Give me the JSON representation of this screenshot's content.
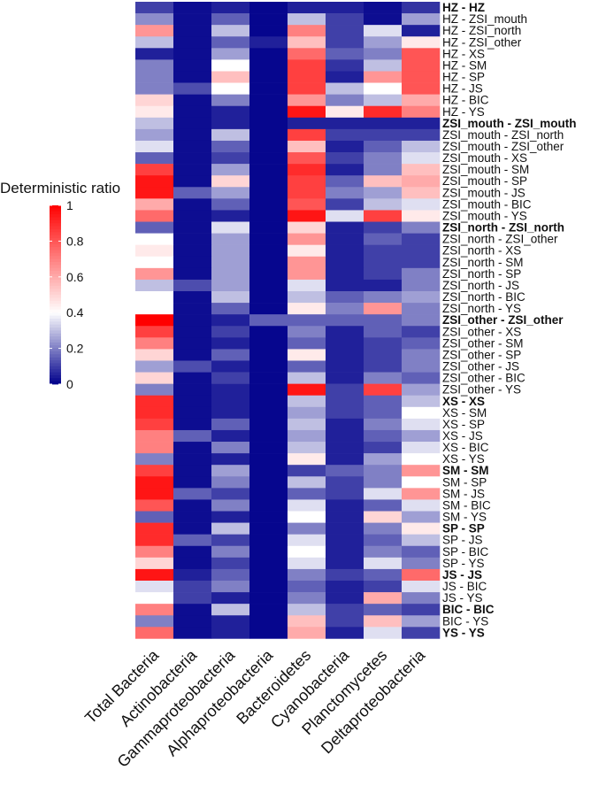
{
  "chart_data": {
    "type": "heatmap",
    "title": "",
    "columns": [
      "Total Bacteria",
      "Actinobacteria",
      "Gammaproteobacteria",
      "Alphaproteobacteria",
      "Bacteroidetes",
      "Cyanobacteria",
      "Planctomycetes",
      "Deltaproteobacteria"
    ],
    "rows": [
      {
        "label": "HZ - HZ",
        "bold": true,
        "values": [
          0.1,
          0.02,
          0.05,
          0.01,
          0.05,
          0.05,
          0.02,
          0.08
        ]
      },
      {
        "label": "HZ - ZSI_mouth",
        "bold": false,
        "values": [
          0.22,
          0.02,
          0.15,
          0.01,
          0.3,
          0.1,
          0.02,
          0.25
        ]
      },
      {
        "label": "HZ - ZSI_north",
        "bold": false,
        "values": [
          0.65,
          0.02,
          0.3,
          0.01,
          0.7,
          0.1,
          0.35,
          0.05
        ]
      },
      {
        "label": "HZ - ZSI_other",
        "bold": false,
        "values": [
          0.3,
          0.02,
          0.15,
          0.05,
          0.55,
          0.1,
          0.25,
          0.45
        ]
      },
      {
        "label": "HZ - XS",
        "bold": false,
        "values": [
          0.05,
          0.02,
          0.25,
          0.01,
          0.75,
          0.15,
          0.2,
          0.8
        ]
      },
      {
        "label": "HZ - SM",
        "bold": false,
        "values": [
          0.2,
          0.02,
          0.4,
          0.01,
          0.85,
          0.08,
          0.3,
          0.8
        ]
      },
      {
        "label": "HZ - SP",
        "bold": false,
        "values": [
          0.2,
          0.02,
          0.55,
          0.01,
          0.85,
          0.05,
          0.65,
          0.8
        ]
      },
      {
        "label": "HZ - JS",
        "bold": false,
        "values": [
          0.2,
          0.12,
          0.4,
          0.01,
          0.85,
          0.3,
          0.4,
          0.8
        ]
      },
      {
        "label": "HZ - BIC",
        "bold": false,
        "values": [
          0.5,
          0.02,
          0.2,
          0.01,
          0.65,
          0.2,
          0.3,
          0.6
        ]
      },
      {
        "label": "HZ - YS",
        "bold": false,
        "values": [
          0.45,
          0.02,
          0.05,
          0.01,
          0.95,
          0.45,
          0.9,
          0.7
        ]
      },
      {
        "label": "ZSI_mouth - ZSI_mouth",
        "bold": true,
        "values": [
          0.3,
          0.02,
          0.05,
          0.01,
          0.05,
          0.05,
          0.05,
          0.05
        ]
      },
      {
        "label": "ZSI_mouth - ZSI_north",
        "bold": false,
        "values": [
          0.25,
          0.02,
          0.3,
          0.01,
          0.85,
          0.1,
          0.1,
          0.1
        ]
      },
      {
        "label": "ZSI_mouth - ZSI_other",
        "bold": false,
        "values": [
          0.35,
          0.02,
          0.15,
          0.01,
          0.55,
          0.05,
          0.15,
          0.3
        ]
      },
      {
        "label": "ZSI_mouth - XS",
        "bold": false,
        "values": [
          0.15,
          0.02,
          0.1,
          0.01,
          0.8,
          0.1,
          0.2,
          0.35
        ]
      },
      {
        "label": "ZSI_mouth - SM",
        "bold": false,
        "values": [
          0.85,
          0.02,
          0.25,
          0.01,
          0.9,
          0.05,
          0.2,
          0.55
        ]
      },
      {
        "label": "ZSI_mouth - SP",
        "bold": false,
        "values": [
          0.95,
          0.02,
          0.5,
          0.01,
          0.85,
          0.15,
          0.55,
          0.6
        ]
      },
      {
        "label": "ZSI_mouth - JS",
        "bold": false,
        "values": [
          0.95,
          0.15,
          0.25,
          0.01,
          0.85,
          0.2,
          0.25,
          0.55
        ]
      },
      {
        "label": "ZSI_mouth - BIC",
        "bold": false,
        "values": [
          0.6,
          0.02,
          0.15,
          0.01,
          0.8,
          0.1,
          0.3,
          0.35
        ]
      },
      {
        "label": "ZSI_mouth - YS",
        "bold": false,
        "values": [
          0.75,
          0.02,
          0.05,
          0.01,
          0.95,
          0.35,
          0.85,
          0.45
        ]
      },
      {
        "label": "ZSI_north - ZSI_north",
        "bold": true,
        "values": [
          0.15,
          0.02,
          0.35,
          0.01,
          0.5,
          0.05,
          0.1,
          0.2
        ]
      },
      {
        "label": "ZSI_north - ZSI_other",
        "bold": false,
        "values": [
          0.4,
          0.02,
          0.25,
          0.01,
          0.65,
          0.05,
          0.15,
          0.1
        ]
      },
      {
        "label": "ZSI_north - XS",
        "bold": false,
        "values": [
          0.45,
          0.02,
          0.25,
          0.01,
          0.45,
          0.05,
          0.1,
          0.1
        ]
      },
      {
        "label": "ZSI_north - SM",
        "bold": false,
        "values": [
          0.4,
          0.02,
          0.25,
          0.01,
          0.65,
          0.05,
          0.1,
          0.1
        ]
      },
      {
        "label": "ZSI_north - SP",
        "bold": false,
        "values": [
          0.65,
          0.02,
          0.25,
          0.01,
          0.65,
          0.05,
          0.1,
          0.2
        ]
      },
      {
        "label": "ZSI_north - JS",
        "bold": false,
        "values": [
          0.3,
          0.12,
          0.25,
          0.01,
          0.35,
          0.05,
          0.05,
          0.2
        ]
      },
      {
        "label": "ZSI_north - BIC",
        "bold": false,
        "values": [
          0.4,
          0.02,
          0.3,
          0.01,
          0.3,
          0.15,
          0.2,
          0.25
        ]
      },
      {
        "label": "ZSI_north - YS",
        "bold": false,
        "values": [
          0.4,
          0.02,
          0.15,
          0.01,
          0.45,
          0.2,
          0.65,
          0.2
        ]
      },
      {
        "label": "ZSI_other - ZSI_other",
        "bold": true,
        "values": [
          1.0,
          0.02,
          0.05,
          0.15,
          0.15,
          0.15,
          0.15,
          0.2
        ]
      },
      {
        "label": "ZSI_other - XS",
        "bold": false,
        "values": [
          0.85,
          0.02,
          0.1,
          0.01,
          0.2,
          0.05,
          0.15,
          0.1
        ]
      },
      {
        "label": "ZSI_other - SM",
        "bold": false,
        "values": [
          0.7,
          0.02,
          0.05,
          0.01,
          0.15,
          0.05,
          0.1,
          0.15
        ]
      },
      {
        "label": "ZSI_other - SP",
        "bold": false,
        "values": [
          0.5,
          0.02,
          0.15,
          0.01,
          0.45,
          0.05,
          0.1,
          0.2
        ]
      },
      {
        "label": "ZSI_other - JS",
        "bold": false,
        "values": [
          0.25,
          0.12,
          0.05,
          0.01,
          0.15,
          0.05,
          0.1,
          0.2
        ]
      },
      {
        "label": "ZSI_other - BIC",
        "bold": false,
        "values": [
          0.5,
          0.02,
          0.1,
          0.01,
          0.3,
          0.05,
          0.2,
          0.15
        ]
      },
      {
        "label": "ZSI_other - YS",
        "bold": false,
        "values": [
          0.2,
          0.02,
          0.05,
          0.01,
          0.95,
          0.1,
          0.85,
          0.25
        ]
      },
      {
        "label": "XS - XS",
        "bold": true,
        "values": [
          0.9,
          0.02,
          0.05,
          0.01,
          0.3,
          0.1,
          0.15,
          0.3
        ]
      },
      {
        "label": "XS - SM",
        "bold": false,
        "values": [
          0.9,
          0.02,
          0.05,
          0.01,
          0.25,
          0.1,
          0.15,
          0.4
        ]
      },
      {
        "label": "XS - SP",
        "bold": false,
        "values": [
          0.85,
          0.02,
          0.15,
          0.01,
          0.3,
          0.05,
          0.2,
          0.35
        ]
      },
      {
        "label": "XS - JS",
        "bold": false,
        "values": [
          0.7,
          0.15,
          0.05,
          0.01,
          0.25,
          0.05,
          0.15,
          0.25
        ]
      },
      {
        "label": "XS - BIC",
        "bold": false,
        "values": [
          0.7,
          0.02,
          0.2,
          0.01,
          0.3,
          0.05,
          0.1,
          0.35
        ]
      },
      {
        "label": "XS - YS",
        "bold": false,
        "values": [
          0.2,
          0.02,
          0.05,
          0.01,
          0.45,
          0.05,
          0.25,
          0.4
        ]
      },
      {
        "label": "SM - SM",
        "bold": true,
        "values": [
          0.85,
          0.02,
          0.25,
          0.01,
          0.1,
          0.15,
          0.2,
          0.65
        ]
      },
      {
        "label": "SM - SP",
        "bold": false,
        "values": [
          0.95,
          0.02,
          0.2,
          0.01,
          0.3,
          0.1,
          0.2,
          0.4
        ]
      },
      {
        "label": "SM - JS",
        "bold": false,
        "values": [
          0.95,
          0.15,
          0.1,
          0.01,
          0.15,
          0.1,
          0.35,
          0.65
        ]
      },
      {
        "label": "SM - BIC",
        "bold": false,
        "values": [
          0.8,
          0.02,
          0.2,
          0.01,
          0.35,
          0.05,
          0.15,
          0.35
        ]
      },
      {
        "label": "SM - YS",
        "bold": false,
        "values": [
          0.15,
          0.02,
          0.05,
          0.01,
          0.4,
          0.05,
          0.5,
          0.25
        ]
      },
      {
        "label": "SP - SP",
        "bold": true,
        "values": [
          0.9,
          0.02,
          0.3,
          0.01,
          0.2,
          0.05,
          0.2,
          0.45
        ]
      },
      {
        "label": "SP - JS",
        "bold": false,
        "values": [
          0.9,
          0.15,
          0.1,
          0.01,
          0.35,
          0.05,
          0.15,
          0.3
        ]
      },
      {
        "label": "SP - BIC",
        "bold": false,
        "values": [
          0.7,
          0.02,
          0.2,
          0.01,
          0.4,
          0.05,
          0.2,
          0.15
        ]
      },
      {
        "label": "SP - YS",
        "bold": false,
        "values": [
          0.5,
          0.02,
          0.1,
          0.01,
          0.35,
          0.05,
          0.35,
          0.2
        ]
      },
      {
        "label": "JS - JS",
        "bold": true,
        "values": [
          0.95,
          0.05,
          0.15,
          0.01,
          0.2,
          0.1,
          0.15,
          0.75
        ]
      },
      {
        "label": "JS - BIC",
        "bold": false,
        "values": [
          0.35,
          0.1,
          0.2,
          0.01,
          0.15,
          0.05,
          0.1,
          0.35
        ]
      },
      {
        "label": "JS - YS",
        "bold": false,
        "values": [
          0.4,
          0.1,
          0.05,
          0.01,
          0.2,
          0.05,
          0.6,
          0.2
        ]
      },
      {
        "label": "BIC - BIC",
        "bold": true,
        "values": [
          0.7,
          0.02,
          0.3,
          0.01,
          0.3,
          0.1,
          0.15,
          0.1
        ]
      },
      {
        "label": "BIC - YS",
        "bold": false,
        "values": [
          0.2,
          0.02,
          0.05,
          0.01,
          0.55,
          0.1,
          0.55,
          0.25
        ]
      },
      {
        "label": "YS - YS",
        "bold": true,
        "values": [
          0.75,
          0.02,
          0.05,
          0.01,
          0.6,
          0.05,
          0.35,
          0.1
        ]
      }
    ],
    "legend": {
      "title": "Deterministic ratio",
      "min": 0,
      "max": 1,
      "ticks": [
        {
          "value": 1,
          "label": "1"
        },
        {
          "value": 0.8,
          "label": "0.8"
        },
        {
          "value": 0.6,
          "label": "0.6"
        },
        {
          "value": 0.4,
          "label": "0.4"
        },
        {
          "value": 0.2,
          "label": "0.2"
        },
        {
          "value": 0,
          "label": "0"
        }
      ],
      "placement": "left"
    },
    "colors": {
      "low": "#00008b",
      "mid": "#ffffff",
      "high": "#ff0000",
      "mid_value": 0.4
    }
  }
}
